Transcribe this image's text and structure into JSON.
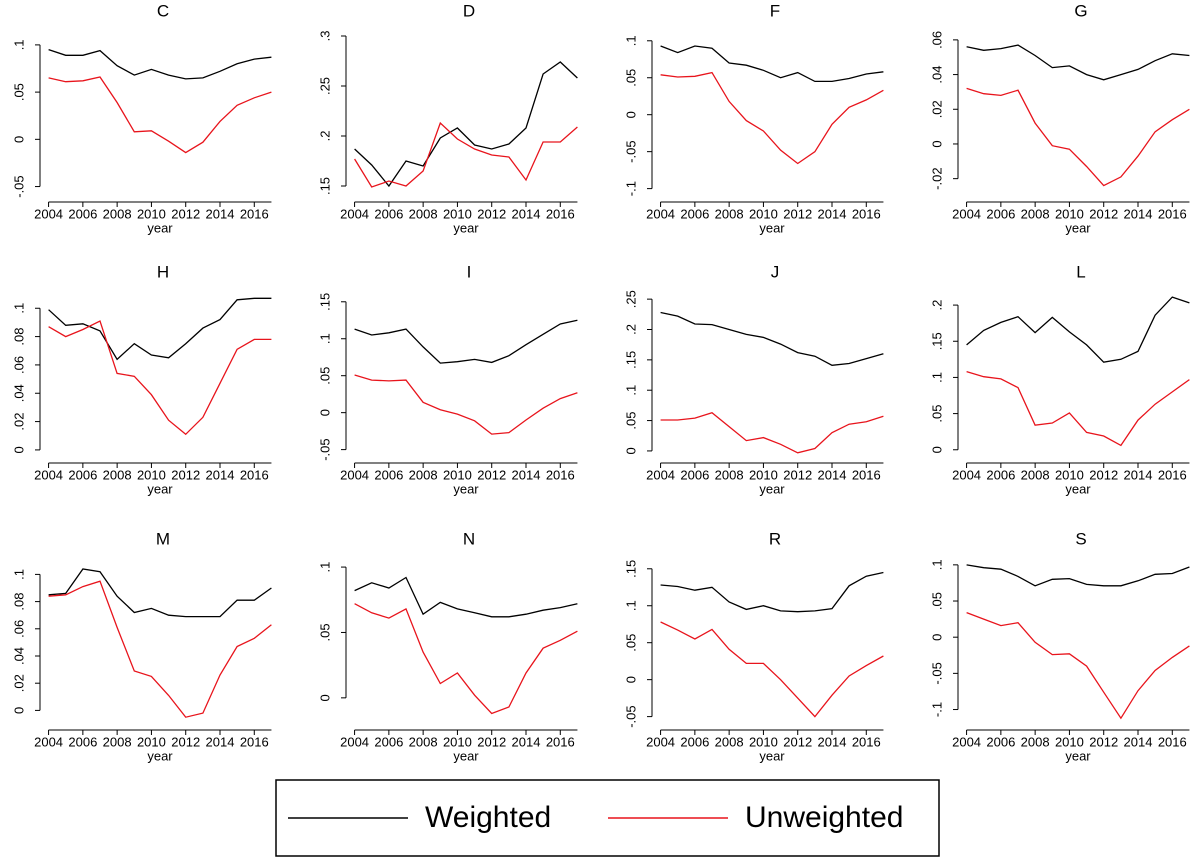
{
  "chart_data": [
    {
      "type": "line",
      "title": "C",
      "xlabel": "year",
      "x": [
        2004,
        2005,
        2006,
        2007,
        2008,
        2009,
        2010,
        2011,
        2012,
        2013,
        2014,
        2015,
        2016,
        2017
      ],
      "xlim": [
        2003.5,
        2017.5
      ],
      "xticks": [
        2004,
        2006,
        2008,
        2010,
        2012,
        2014,
        2016
      ],
      "ylim": [
        -0.06,
        0.12
      ],
      "yticks": [
        {
          "value": -0.05,
          "label": "-.05"
        },
        0,
        {
          "value": 0.05,
          "label": ".05"
        },
        {
          "value": 0.1,
          "label": ".1"
        }
      ],
      "series": [
        {
          "name": "Weighted",
          "color": "#000000",
          "values": [
            0.095,
            0.089,
            0.089,
            0.094,
            0.078,
            0.068,
            0.074,
            0.068,
            0.064,
            0.065,
            0.072,
            0.08,
            0.085,
            0.087
          ]
        },
        {
          "name": "Unweighted",
          "color": "#e8141c",
          "values": [
            0.065,
            0.061,
            0.062,
            0.066,
            0.039,
            0.008,
            0.009,
            -0.002,
            -0.014,
            -0.003,
            0.019,
            0.036,
            0.044,
            0.05
          ]
        }
      ]
    },
    {
      "type": "line",
      "title": "D",
      "xlabel": "year",
      "x": [
        2004,
        2005,
        2006,
        2007,
        2008,
        2009,
        2010,
        2011,
        2012,
        2013,
        2014,
        2015,
        2016,
        2017
      ],
      "xlim": [
        2003.5,
        2017.5
      ],
      "xticks": [
        2004,
        2006,
        2008,
        2010,
        2012,
        2014,
        2016
      ],
      "ylim": [
        0.14,
        0.31
      ],
      "yticks": [
        {
          "value": 0.15,
          "label": ".15"
        },
        {
          "value": 0.2,
          "label": ".2"
        },
        {
          "value": 0.25,
          "label": ".25"
        },
        {
          "value": 0.3,
          "label": ".3"
        }
      ],
      "series": [
        {
          "name": "Weighted",
          "color": "#000000",
          "values": [
            0.187,
            0.171,
            0.15,
            0.175,
            0.17,
            0.198,
            0.208,
            0.191,
            0.187,
            0.192,
            0.208,
            0.262,
            0.274,
            0.258
          ]
        },
        {
          "name": "Unweighted",
          "color": "#e8141c",
          "values": [
            0.177,
            0.149,
            0.155,
            0.15,
            0.165,
            0.213,
            0.197,
            0.187,
            0.181,
            0.179,
            0.156,
            0.194,
            0.194,
            0.209
          ]
        }
      ]
    },
    {
      "type": "line",
      "title": "F",
      "xlabel": "year",
      "x": [
        2004,
        2005,
        2006,
        2007,
        2008,
        2009,
        2010,
        2011,
        2012,
        2013,
        2014,
        2015,
        2016,
        2017
      ],
      "xlim": [
        2003.5,
        2017.5
      ],
      "xticks": [
        2004,
        2006,
        2008,
        2010,
        2012,
        2014,
        2016
      ],
      "ylim": [
        -0.11,
        0.12
      ],
      "yticks": [
        {
          "value": -0.1,
          "label": "-.1"
        },
        {
          "value": -0.05,
          "label": "-.05"
        },
        0,
        {
          "value": 0.05,
          "label": ".05"
        },
        {
          "value": 0.1,
          "label": ".1"
        }
      ],
      "series": [
        {
          "name": "Weighted",
          "color": "#000000",
          "values": [
            0.093,
            0.084,
            0.093,
            0.09,
            0.07,
            0.067,
            0.06,
            0.05,
            0.057,
            0.045,
            0.045,
            0.049,
            0.055,
            0.058
          ]
        },
        {
          "name": "Unweighted",
          "color": "#e8141c",
          "values": [
            0.054,
            0.051,
            0.052,
            0.057,
            0.018,
            -0.008,
            -0.022,
            -0.048,
            -0.066,
            -0.05,
            -0.013,
            0.01,
            0.02,
            0.033
          ]
        }
      ]
    },
    {
      "type": "line",
      "title": "G",
      "xlabel": "year",
      "x": [
        2004,
        2005,
        2006,
        2007,
        2008,
        2009,
        2010,
        2011,
        2012,
        2013,
        2014,
        2015,
        2016,
        2017
      ],
      "xlim": [
        2003.5,
        2017.5
      ],
      "xticks": [
        2004,
        2006,
        2008,
        2010,
        2012,
        2014,
        2016
      ],
      "ylim": [
        -0.03,
        0.068
      ],
      "yticks": [
        {
          "value": -0.02,
          "label": "-.02"
        },
        0,
        {
          "value": 0.02,
          "label": ".02"
        },
        {
          "value": 0.04,
          "label": ".04"
        },
        {
          "value": 0.06,
          "label": ".06"
        }
      ],
      "series": [
        {
          "name": "Weighted",
          "color": "#000000",
          "values": [
            0.056,
            0.054,
            0.055,
            0.057,
            0.051,
            0.044,
            0.045,
            0.04,
            0.037,
            0.04,
            0.043,
            0.048,
            0.052,
            0.051
          ]
        },
        {
          "name": "Unweighted",
          "color": "#e8141c",
          "values": [
            0.032,
            0.029,
            0.028,
            0.031,
            0.012,
            -0.001,
            -0.003,
            -0.013,
            -0.024,
            -0.019,
            -0.007,
            0.007,
            0.014,
            0.02
          ]
        }
      ]
    },
    {
      "type": "line",
      "title": "H",
      "xlabel": "year",
      "x": [
        2004,
        2005,
        2006,
        2007,
        2008,
        2009,
        2010,
        2011,
        2012,
        2013,
        2014,
        2015,
        2016,
        2017
      ],
      "xlim": [
        2003.5,
        2017.5
      ],
      "xticks": [
        2004,
        2006,
        2008,
        2010,
        2012,
        2014,
        2016
      ],
      "ylim": [
        -0.005,
        0.115
      ],
      "yticks": [
        0,
        {
          "value": 0.02,
          "label": ".02"
        },
        {
          "value": 0.04,
          "label": ".04"
        },
        {
          "value": 0.06,
          "label": ".06"
        },
        {
          "value": 0.08,
          "label": ".08"
        },
        {
          "value": 0.1,
          "label": ".1"
        }
      ],
      "series": [
        {
          "name": "Weighted",
          "color": "#000000",
          "values": [
            0.099,
            0.088,
            0.089,
            0.084,
            0.064,
            0.075,
            0.067,
            0.065,
            0.075,
            0.086,
            0.092,
            0.106,
            0.107,
            0.107
          ]
        },
        {
          "name": "Unweighted",
          "color": "#e8141c",
          "values": [
            0.087,
            0.08,
            0.085,
            0.091,
            0.054,
            0.052,
            0.039,
            0.021,
            0.011,
            0.023,
            0.047,
            0.071,
            0.078,
            0.078
          ]
        }
      ]
    },
    {
      "type": "line",
      "title": "I",
      "xlabel": "year",
      "x": [
        2004,
        2005,
        2006,
        2007,
        2008,
        2009,
        2010,
        2011,
        2012,
        2013,
        2014,
        2015,
        2016,
        2017
      ],
      "xlim": [
        2003.5,
        2017.5
      ],
      "xticks": [
        2004,
        2006,
        2008,
        2010,
        2012,
        2014,
        2016
      ],
      "ylim": [
        -0.06,
        0.17
      ],
      "yticks": [
        {
          "value": -0.05,
          "label": "-.05"
        },
        0,
        {
          "value": 0.05,
          "label": ".05"
        },
        {
          "value": 0.1,
          "label": ".1"
        },
        {
          "value": 0.15,
          "label": ".15"
        }
      ],
      "series": [
        {
          "name": "Weighted",
          "color": "#000000",
          "values": [
            0.113,
            0.105,
            0.108,
            0.113,
            0.089,
            0.067,
            0.069,
            0.072,
            0.068,
            0.077,
            0.092,
            0.106,
            0.12,
            0.125
          ]
        },
        {
          "name": "Unweighted",
          "color": "#e8141c",
          "values": [
            0.051,
            0.044,
            0.043,
            0.044,
            0.014,
            0.004,
            -0.002,
            -0.011,
            -0.029,
            -0.027,
            -0.01,
            0.006,
            0.019,
            0.027
          ]
        }
      ]
    },
    {
      "type": "line",
      "title": "J",
      "xlabel": "year",
      "x": [
        2004,
        2005,
        2006,
        2007,
        2008,
        2009,
        2010,
        2011,
        2012,
        2013,
        2014,
        2015,
        2016,
        2017
      ],
      "xlim": [
        2003.5,
        2017.5
      ],
      "xticks": [
        2004,
        2006,
        2008,
        2010,
        2012,
        2014,
        2016
      ],
      "ylim": [
        -0.01,
        0.27
      ],
      "yticks": [
        0,
        {
          "value": 0.05,
          "label": ".05"
        },
        {
          "value": 0.1,
          "label": ".1"
        },
        {
          "value": 0.15,
          "label": ".15"
        },
        {
          "value": 0.2,
          "label": ".2"
        },
        {
          "value": 0.25,
          "label": ".25"
        }
      ],
      "series": [
        {
          "name": "Weighted",
          "color": "#000000",
          "values": [
            0.228,
            0.222,
            0.209,
            0.208,
            0.2,
            0.192,
            0.187,
            0.176,
            0.162,
            0.156,
            0.141,
            0.144,
            0.152,
            0.16
          ]
        },
        {
          "name": "Unweighted",
          "color": "#e8141c",
          "values": [
            0.051,
            0.051,
            0.054,
            0.063,
            0.04,
            0.017,
            0.022,
            0.011,
            -0.003,
            0.004,
            0.03,
            0.044,
            0.048,
            0.057
          ]
        }
      ]
    },
    {
      "type": "line",
      "title": "L",
      "xlabel": "year",
      "x": [
        2004,
        2005,
        2006,
        2007,
        2008,
        2009,
        2010,
        2011,
        2012,
        2013,
        2014,
        2015,
        2016,
        2017
      ],
      "xlim": [
        2003.5,
        2017.5
      ],
      "xticks": [
        2004,
        2006,
        2008,
        2010,
        2012,
        2014,
        2016
      ],
      "ylim": [
        -0.01,
        0.225
      ],
      "yticks": [
        0,
        {
          "value": 0.05,
          "label": ".05"
        },
        {
          "value": 0.1,
          "label": ".1"
        },
        {
          "value": 0.15,
          "label": ".15"
        },
        {
          "value": 0.2,
          "label": ".2"
        }
      ],
      "series": [
        {
          "name": "Weighted",
          "color": "#000000",
          "values": [
            0.145,
            0.165,
            0.176,
            0.184,
            0.162,
            0.183,
            0.163,
            0.145,
            0.121,
            0.125,
            0.136,
            0.186,
            0.211,
            0.203
          ]
        },
        {
          "name": "Unweighted",
          "color": "#e8141c",
          "values": [
            0.108,
            0.101,
            0.098,
            0.086,
            0.034,
            0.037,
            0.051,
            0.024,
            0.019,
            0.006,
            0.041,
            0.063,
            0.08,
            0.097
          ]
        }
      ]
    },
    {
      "type": "line",
      "title": "M",
      "xlabel": "year",
      "x": [
        2004,
        2005,
        2006,
        2007,
        2008,
        2009,
        2010,
        2011,
        2012,
        2013,
        2014,
        2015,
        2016,
        2017
      ],
      "xlim": [
        2003.5,
        2017.5
      ],
      "xticks": [
        2004,
        2006,
        2008,
        2010,
        2012,
        2014,
        2016
      ],
      "ylim": [
        -0.01,
        0.115
      ],
      "yticks": [
        0,
        {
          "value": 0.02,
          "label": ".02"
        },
        {
          "value": 0.04,
          "label": ".04"
        },
        {
          "value": 0.06,
          "label": ".06"
        },
        {
          "value": 0.08,
          "label": ".08"
        },
        {
          "value": 0.1,
          "label": ".1"
        }
      ],
      "series": [
        {
          "name": "Weighted",
          "color": "#000000",
          "values": [
            0.085,
            0.086,
            0.104,
            0.102,
            0.084,
            0.072,
            0.075,
            0.07,
            0.069,
            0.069,
            0.069,
            0.081,
            0.081,
            0.09
          ]
        },
        {
          "name": "Unweighted",
          "color": "#e8141c",
          "values": [
            0.084,
            0.085,
            0.091,
            0.095,
            0.061,
            0.029,
            0.025,
            0.011,
            -0.005,
            -0.002,
            0.026,
            0.047,
            0.053,
            0.063
          ]
        }
      ]
    },
    {
      "type": "line",
      "title": "N",
      "xlabel": "year",
      "x": [
        2004,
        2005,
        2006,
        2007,
        2008,
        2009,
        2010,
        2011,
        2012,
        2013,
        2014,
        2015,
        2016,
        2017
      ],
      "xlim": [
        2003.5,
        2017.5
      ],
      "xticks": [
        2004,
        2006,
        2008,
        2010,
        2012,
        2014,
        2016
      ],
      "ylim": [
        -0.02,
        0.11
      ],
      "yticks": [
        0,
        {
          "value": 0.05,
          "label": ".05"
        },
        {
          "value": 0.1,
          "label": ".1"
        }
      ],
      "series": [
        {
          "name": "Weighted",
          "color": "#000000",
          "values": [
            0.082,
            0.088,
            0.084,
            0.092,
            0.064,
            0.073,
            0.068,
            0.065,
            0.062,
            0.062,
            0.064,
            0.067,
            0.069,
            0.072
          ]
        },
        {
          "name": "Unweighted",
          "color": "#e8141c",
          "values": [
            0.072,
            0.065,
            0.061,
            0.068,
            0.035,
            0.011,
            0.019,
            0.002,
            -0.012,
            -0.007,
            0.019,
            0.038,
            0.044,
            0.051
          ]
        }
      ]
    },
    {
      "type": "line",
      "title": "R",
      "xlabel": "year",
      "x": [
        2004,
        2005,
        2006,
        2007,
        2008,
        2009,
        2010,
        2011,
        2012,
        2013,
        2014,
        2015,
        2016,
        2017
      ],
      "xlim": [
        2003.5,
        2017.5
      ],
      "xticks": [
        2004,
        2006,
        2008,
        2010,
        2012,
        2014,
        2016
      ],
      "ylim": [
        -0.06,
        0.17
      ],
      "yticks": [
        {
          "value": -0.05,
          "label": "-.05"
        },
        0,
        {
          "value": 0.05,
          "label": ".05"
        },
        {
          "value": 0.1,
          "label": ".1"
        },
        {
          "value": 0.15,
          "label": ".15"
        }
      ],
      "series": [
        {
          "name": "Weighted",
          "color": "#000000",
          "values": [
            0.128,
            0.126,
            0.121,
            0.125,
            0.105,
            0.095,
            0.1,
            0.093,
            0.092,
            0.093,
            0.096,
            0.127,
            0.14,
            0.145
          ]
        },
        {
          "name": "Unweighted",
          "color": "#e8141c",
          "values": [
            0.078,
            0.067,
            0.055,
            0.068,
            0.041,
            0.022,
            0.022,
            0.0,
            -0.025,
            -0.05,
            -0.021,
            0.005,
            0.019,
            0.032
          ]
        }
      ]
    },
    {
      "type": "line",
      "title": "S",
      "xlabel": "year",
      "x": [
        2004,
        2005,
        2006,
        2007,
        2008,
        2009,
        2010,
        2011,
        2012,
        2013,
        2014,
        2015,
        2016,
        2017
      ],
      "xlim": [
        2003.5,
        2017.5
      ],
      "xticks": [
        2004,
        2006,
        2008,
        2010,
        2012,
        2014,
        2016
      ],
      "ylim": [
        -0.12,
        0.115
      ],
      "yticks": [
        {
          "value": -0.1,
          "label": "-.1"
        },
        {
          "value": -0.05,
          "label": "-.05"
        },
        0,
        {
          "value": 0.05,
          "label": ".05"
        },
        {
          "value": 0.1,
          "label": ".1"
        }
      ],
      "series": [
        {
          "name": "Weighted",
          "color": "#000000",
          "values": [
            0.1,
            0.096,
            0.094,
            0.084,
            0.071,
            0.08,
            0.081,
            0.073,
            0.071,
            0.071,
            0.078,
            0.087,
            0.088,
            0.097
          ]
        },
        {
          "name": "Unweighted",
          "color": "#e8141c",
          "values": [
            0.034,
            0.025,
            0.016,
            0.02,
            -0.007,
            -0.024,
            -0.023,
            -0.04,
            -0.076,
            -0.112,
            -0.074,
            -0.046,
            -0.028,
            -0.012
          ]
        }
      ]
    }
  ]
}
